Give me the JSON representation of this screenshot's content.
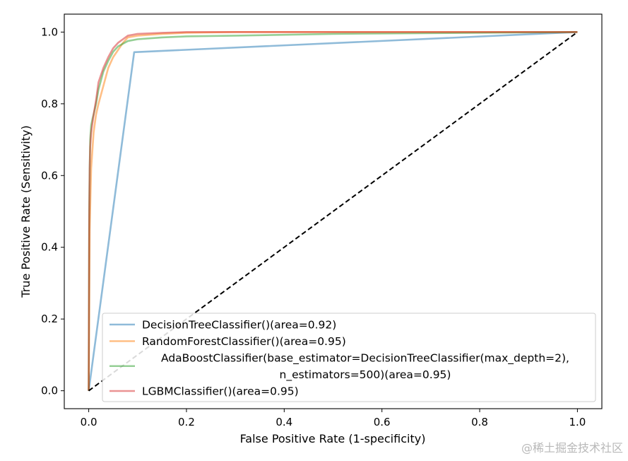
{
  "chart_data": {
    "type": "line",
    "title": "",
    "xlabel": "False Positive Rate (1-specificity)",
    "ylabel": "True Positive Rate (Sensitivity)",
    "xlim": [
      -0.05,
      1.05
    ],
    "ylim": [
      -0.05,
      1.05
    ],
    "xticks": [
      0.0,
      0.2,
      0.4,
      0.6,
      0.8,
      1.0
    ],
    "yticks": [
      0.0,
      0.2,
      0.4,
      0.6,
      0.8,
      1.0
    ],
    "xtick_labels": [
      "0.0",
      "0.2",
      "0.4",
      "0.6",
      "0.8",
      "1.0"
    ],
    "ytick_labels": [
      "0.0",
      "0.2",
      "0.4",
      "0.6",
      "0.8",
      "1.0"
    ],
    "grid": false,
    "legend_position": "lower-right",
    "series": [
      {
        "name": "DecisionTreeClassifier()(area=0.92)",
        "legend_lines": [
          "DecisionTreeClassifier()(area=0.92)"
        ],
        "color": "#1f77b4",
        "x": [
          0.0,
          0.093,
          1.0
        ],
        "y": [
          0.0,
          0.944,
          1.0
        ]
      },
      {
        "name": "RandomForestClassifier()(area=0.95)",
        "legend_lines": [
          "RandomForestClassifier()(area=0.95)"
        ],
        "color": "#ff7f0e",
        "x": [
          0.0,
          0.002,
          0.005,
          0.01,
          0.015,
          0.02,
          0.03,
          0.04,
          0.05,
          0.06,
          0.07,
          0.08,
          0.1,
          0.15,
          0.2,
          0.3,
          0.5,
          0.7,
          1.0
        ],
        "y": [
          0.0,
          0.45,
          0.62,
          0.72,
          0.77,
          0.8,
          0.85,
          0.9,
          0.93,
          0.95,
          0.97,
          0.985,
          0.99,
          0.995,
          0.998,
          1.0,
          1.0,
          1.0,
          1.0
        ]
      },
      {
        "name": "AdaBoostClassifier(base_estimator=DecisionTreeClassifier(max_depth=2), n_estimators=500)(area=0.95)",
        "legend_lines": [
          "AdaBoostClassifier(base_estimator=DecisionTreeClassifier(max_depth=2),",
          "n_estimators=500)(area=0.95)"
        ],
        "color": "#2ca02c",
        "x": [
          0.0,
          0.001,
          0.002,
          0.003,
          0.005,
          0.008,
          0.01,
          0.015,
          0.02,
          0.03,
          0.04,
          0.05,
          0.06,
          0.08,
          0.1,
          0.15,
          0.2,
          0.3,
          0.5,
          1.0
        ],
        "y": [
          0.0,
          0.5,
          0.62,
          0.7,
          0.74,
          0.76,
          0.77,
          0.8,
          0.84,
          0.89,
          0.92,
          0.945,
          0.96,
          0.975,
          0.98,
          0.985,
          0.988,
          0.99,
          0.995,
          1.0
        ]
      },
      {
        "name": "LGBMClassifier()(area=0.95)",
        "legend_lines": [
          "LGBMClassifier()(area=0.95)"
        ],
        "color": "#d62728",
        "x": [
          0.0,
          0.001,
          0.002,
          0.003,
          0.005,
          0.008,
          0.01,
          0.015,
          0.02,
          0.03,
          0.04,
          0.05,
          0.06,
          0.07,
          0.08,
          0.1,
          0.15,
          0.2,
          0.3,
          0.5,
          1.0
        ],
        "y": [
          0.0,
          0.48,
          0.62,
          0.68,
          0.72,
          0.75,
          0.77,
          0.81,
          0.86,
          0.9,
          0.93,
          0.955,
          0.97,
          0.98,
          0.99,
          0.995,
          0.998,
          1.0,
          1.0,
          1.0,
          1.0
        ]
      }
    ],
    "reference_line": {
      "style": "dashed",
      "color": "#000000",
      "x": [
        0.0,
        1.0
      ],
      "y": [
        0.0,
        1.0
      ]
    }
  },
  "watermark": "@稀土掘金技术社区"
}
